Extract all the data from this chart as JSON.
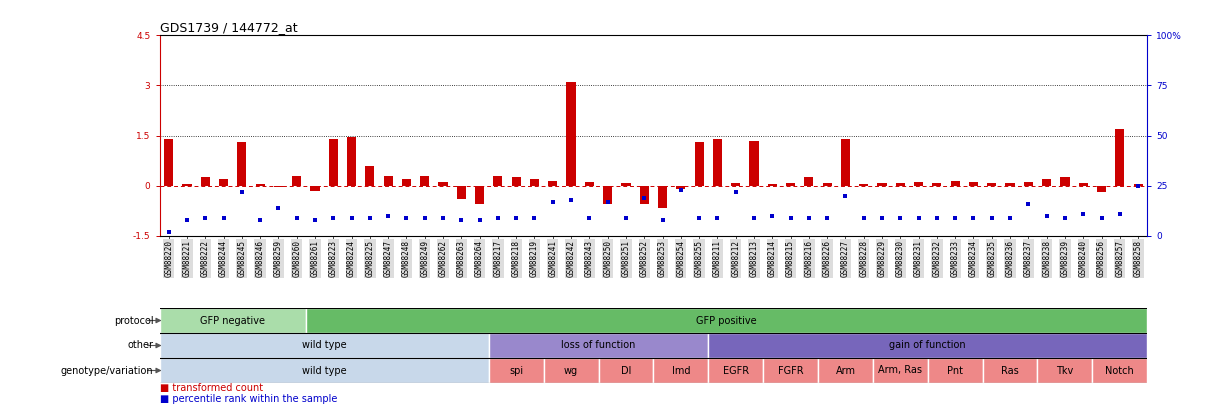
{
  "title": "GDS1739 / 144772_at",
  "samples": [
    "GSM88220",
    "GSM88221",
    "GSM88222",
    "GSM88244",
    "GSM88245",
    "GSM88246",
    "GSM88259",
    "GSM88260",
    "GSM88261",
    "GSM88223",
    "GSM88224",
    "GSM88225",
    "GSM88247",
    "GSM88248",
    "GSM88249",
    "GSM88262",
    "GSM88263",
    "GSM88264",
    "GSM88217",
    "GSM88218",
    "GSM88219",
    "GSM88241",
    "GSM88242",
    "GSM88243",
    "GSM88250",
    "GSM88251",
    "GSM88252",
    "GSM88253",
    "GSM88254",
    "GSM88255",
    "GSM88211",
    "GSM88212",
    "GSM88213",
    "GSM88214",
    "GSM88215",
    "GSM88216",
    "GSM88226",
    "GSM88227",
    "GSM88228",
    "GSM88229",
    "GSM88230",
    "GSM88231",
    "GSM88232",
    "GSM88233",
    "GSM88234",
    "GSM88235",
    "GSM88236",
    "GSM88237",
    "GSM88238",
    "GSM88239",
    "GSM88240",
    "GSM88256",
    "GSM88257",
    "GSM88258"
  ],
  "red_values": [
    1.4,
    0.05,
    0.25,
    0.2,
    1.3,
    0.05,
    -0.05,
    0.3,
    -0.15,
    1.4,
    1.45,
    0.6,
    0.3,
    0.2,
    0.3,
    0.1,
    -0.4,
    -0.55,
    0.3,
    0.25,
    0.2,
    0.15,
    3.1,
    0.12,
    -0.55,
    0.08,
    -0.55,
    -0.65,
    -0.1,
    1.3,
    1.4,
    0.08,
    1.35,
    0.05,
    0.08,
    0.25,
    0.08,
    1.4,
    0.05,
    0.08,
    0.08,
    0.12,
    0.08,
    0.15,
    0.12,
    0.08,
    0.08,
    0.12,
    0.2,
    0.25,
    0.08,
    -0.2,
    1.7,
    0.05
  ],
  "blue_pct": [
    2,
    8,
    9,
    9,
    22,
    8,
    14,
    9,
    8,
    9,
    9,
    9,
    10,
    9,
    9,
    9,
    8,
    8,
    9,
    9,
    9,
    17,
    18,
    9,
    17,
    9,
    19,
    8,
    23,
    9,
    9,
    22,
    9,
    10,
    9,
    9,
    9,
    20,
    9,
    9,
    9,
    9,
    9,
    9,
    9,
    9,
    9,
    16,
    10,
    9,
    11,
    9,
    11,
    25
  ],
  "ylim": [
    -1.5,
    4.5
  ],
  "yticks_left": [
    -1.5,
    0.0,
    1.5,
    3.0,
    4.5
  ],
  "ytick_labels_left": [
    "-1.5",
    "0",
    "1.5",
    "3",
    "4.5"
  ],
  "pct_ticks": [
    0,
    25,
    50,
    75,
    100
  ],
  "pct_labels": [
    "0",
    "25",
    "50",
    "75",
    "100%"
  ],
  "hlines_dotted": [
    1.5,
    3.0
  ],
  "protocol_groups": [
    {
      "label": "GFP negative",
      "start": 0,
      "end": 8,
      "color": "#aaddaa"
    },
    {
      "label": "GFP positive",
      "start": 8,
      "end": 54,
      "color": "#66bb66"
    }
  ],
  "other_groups": [
    {
      "label": "wild type",
      "start": 0,
      "end": 18,
      "color": "#c8d8ea"
    },
    {
      "label": "loss of function",
      "start": 18,
      "end": 30,
      "color": "#9988cc"
    },
    {
      "label": "gain of function",
      "start": 30,
      "end": 54,
      "color": "#7766bb"
    }
  ],
  "genotype_groups": [
    {
      "label": "wild type",
      "start": 0,
      "end": 18,
      "color": "#c8d8ea"
    },
    {
      "label": "spi",
      "start": 18,
      "end": 21,
      "color": "#ee8888"
    },
    {
      "label": "wg",
      "start": 21,
      "end": 24,
      "color": "#ee8888"
    },
    {
      "label": "Dl",
      "start": 24,
      "end": 27,
      "color": "#ee8888"
    },
    {
      "label": "Imd",
      "start": 27,
      "end": 30,
      "color": "#ee8888"
    },
    {
      "label": "EGFR",
      "start": 30,
      "end": 33,
      "color": "#ee8888"
    },
    {
      "label": "FGFR",
      "start": 33,
      "end": 36,
      "color": "#ee8888"
    },
    {
      "label": "Arm",
      "start": 36,
      "end": 39,
      "color": "#ee8888"
    },
    {
      "label": "Arm, Ras",
      "start": 39,
      "end": 42,
      "color": "#ee8888"
    },
    {
      "label": "Pnt",
      "start": 42,
      "end": 45,
      "color": "#ee8888"
    },
    {
      "label": "Ras",
      "start": 45,
      "end": 48,
      "color": "#ee8888"
    },
    {
      "label": "Tkv",
      "start": 48,
      "end": 51,
      "color": "#ee8888"
    },
    {
      "label": "Notch",
      "start": 51,
      "end": 54,
      "color": "#ee8888"
    }
  ],
  "bar_color": "#cc0000",
  "dot_color": "#0000cc",
  "xticklabel_bg": "#dddddd",
  "title_fontsize": 9,
  "tick_fontsize": 5.5,
  "ytick_fontsize": 6.5,
  "row_label_fontsize": 7,
  "annot_fontsize": 7,
  "legend_fontsize": 7
}
